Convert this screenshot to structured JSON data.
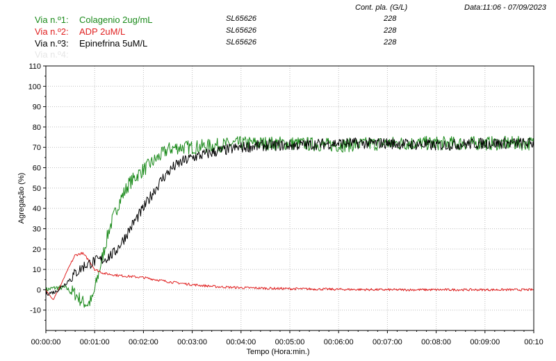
{
  "header": {
    "count_label": "Cont. pla. (G/L)",
    "datetime": "Data:11:06 - 07/09/2023"
  },
  "lanes": [
    {
      "label": "Via n.º1:",
      "name": "Colagenio 2ug/mL",
      "sample": "SL65626",
      "count": "228",
      "color": "#1a8a1a"
    },
    {
      "label": "Via n.º2:",
      "name": "ADP 2uM/L",
      "sample": "SL65626",
      "count": "228",
      "color": "#e02020"
    },
    {
      "label": "Via n.º3:",
      "name": "Epinefrina 5uM/L",
      "sample": "SL65626",
      "count": "228",
      "color": "#000000"
    },
    {
      "label": "Via n.º4:",
      "name": "",
      "sample": "",
      "count": "",
      "color": "#e6e6e6"
    }
  ],
  "chart_data": {
    "type": "line",
    "xlabel": "Tempo (Hora:min.)",
    "ylabel": "Agregação (%)",
    "xlim": [
      0,
      10
    ],
    "ylim": [
      -20,
      110
    ],
    "x_tick_values": [
      0,
      1,
      2,
      3,
      4,
      5,
      6,
      7,
      8,
      9,
      10
    ],
    "x_tick_labels": [
      "00:00:00",
      "00:01:00",
      "00:02:00",
      "00:03:00",
      "00:04:00",
      "00:05:00",
      "00:06:00",
      "00:07:00",
      "00:08:00",
      "00:09:00",
      "00:10"
    ],
    "y_ticks": [
      -10,
      0,
      10,
      20,
      30,
      40,
      50,
      60,
      70,
      80,
      90,
      100,
      110
    ],
    "grid": true,
    "series": [
      {
        "name": "Colagenio 2ug/mL",
        "color": "#1a8a1a",
        "noise": 3.5,
        "x": [
          0,
          0.2,
          0.4,
          0.6,
          0.75,
          0.85,
          0.95,
          1.05,
          1.15,
          1.3,
          1.5,
          1.7,
          1.9,
          2.1,
          2.3,
          2.5,
          2.7,
          3.0,
          3.5,
          4.0,
          5.0,
          6.0,
          7.0,
          8.0,
          9.0,
          10.0
        ],
        "y": [
          0,
          1,
          1,
          -2,
          -6,
          -7,
          -5,
          5,
          15,
          30,
          43,
          52,
          57,
          61,
          65,
          69,
          70,
          70,
          71,
          72,
          72,
          71,
          72,
          72,
          72,
          72
        ]
      },
      {
        "name": "ADP 2uM/L",
        "color": "#e02020",
        "noise": 0.6,
        "x": [
          0,
          0.15,
          0.3,
          0.45,
          0.6,
          0.75,
          0.9,
          1.0,
          1.2,
          1.5,
          2.0,
          2.5,
          3.0,
          3.5,
          4.0,
          5.0,
          6.0,
          7.0,
          8.0,
          9.0,
          10.0
        ],
        "y": [
          0,
          -5,
          2,
          10,
          17,
          18,
          14,
          10,
          8,
          7,
          6,
          4,
          2.5,
          1.5,
          1,
          0.5,
          0.2,
          0,
          0,
          0,
          0
        ]
      },
      {
        "name": "Epinefrina 5uM/L",
        "color": "#000000",
        "noise": 2.8,
        "x": [
          0,
          0.2,
          0.4,
          0.6,
          0.8,
          1.0,
          1.2,
          1.4,
          1.6,
          1.8,
          2.0,
          2.2,
          2.4,
          2.6,
          2.8,
          3.0,
          3.5,
          4.0,
          4.5,
          5.0,
          6.0,
          7.0,
          8.0,
          9.0,
          10.0
        ],
        "y": [
          -2,
          -1,
          3,
          8,
          12,
          14,
          15,
          18,
          25,
          33,
          40,
          48,
          55,
          60,
          63,
          65,
          68,
          70,
          71,
          71,
          72,
          72,
          71,
          72,
          72
        ]
      }
    ]
  }
}
